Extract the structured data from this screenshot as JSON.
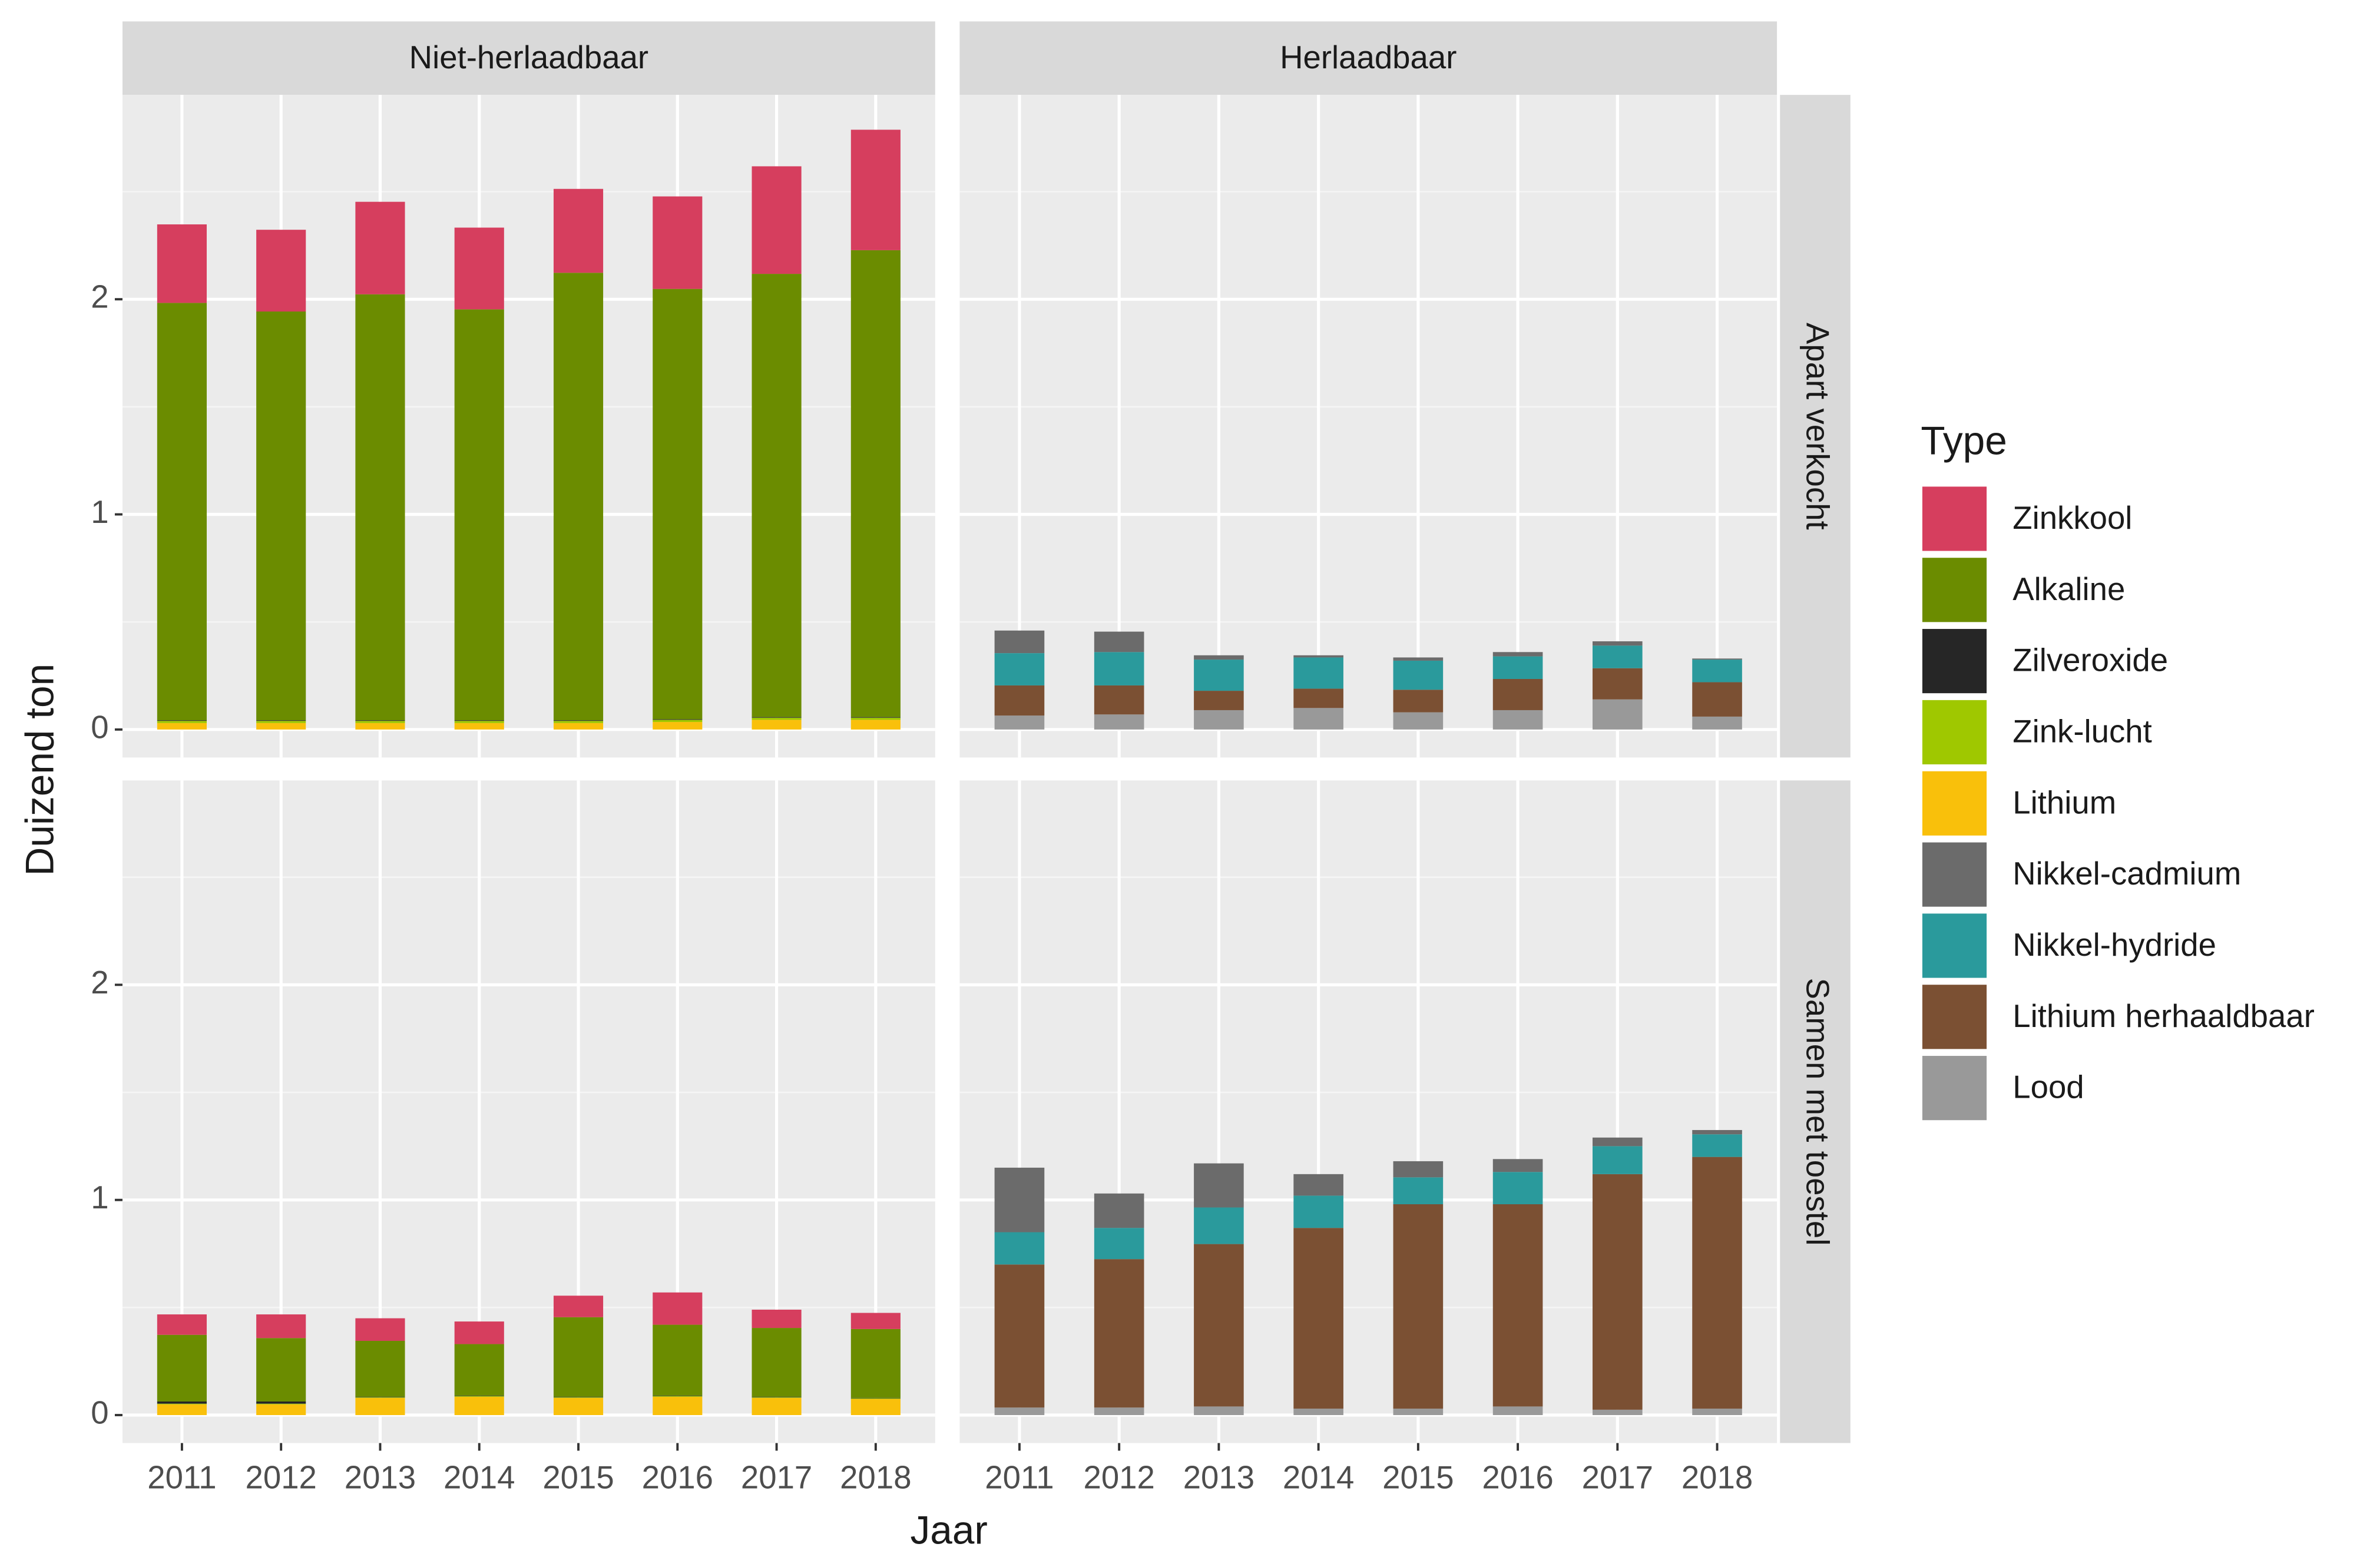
{
  "chart_data": {
    "type": "bar",
    "stacked": true,
    "xlabel": "Jaar",
    "ylabel": "Duizend ton",
    "legend": "right",
    "legend_title": "Type",
    "grid": true,
    "columns": [
      "Niet-herlaadbaar",
      "Herlaadbaar"
    ],
    "rows": [
      "Apart verkocht",
      "Samen met toestel"
    ],
    "categories": [
      "2011",
      "2012",
      "2013",
      "2014",
      "2015",
      "2016",
      "2017",
      "2018"
    ],
    "ylim": [
      -0.13,
      2.95
    ],
    "yticks": [
      0,
      1,
      2
    ],
    "series": [
      {
        "name": "Zinkkool",
        "color": "#d63e5e"
      },
      {
        "name": "Alkaline",
        "color": "#6b8c00"
      },
      {
        "name": "Zilveroxide",
        "color": "#262626"
      },
      {
        "name": "Zink-lucht",
        "color": "#9fc800"
      },
      {
        "name": "Lithium",
        "color": "#f9c00b"
      },
      {
        "name": "Nikkel-cadmium",
        "color": "#6b6b6b"
      },
      {
        "name": "Nikkel-hydride",
        "color": "#2a9a9c"
      },
      {
        "name": "Lithium herhaaldbaar",
        "color": "#7b5033"
      },
      {
        "name": "Lood",
        "color": "#999999"
      }
    ],
    "panels": [
      {
        "series": [
          {
            "values": [
              0.365,
              0.38,
              0.43,
              0.38,
              0.39,
              0.43,
              0.5,
              0.56
            ]
          },
          {
            "values": [
              1.94,
              1.9,
              1.98,
              1.91,
              2.08,
              2.0,
              2.06,
              2.17
            ]
          },
          {
            "values": [
              0.003,
              0.003,
              0.003,
              0.003,
              0.003,
              0.003,
              0.003,
              0.003
            ]
          },
          {
            "values": [
              0.01,
              0.01,
              0.01,
              0.01,
              0.01,
              0.01,
              0.01,
              0.01
            ]
          },
          {
            "values": [
              0.03,
              0.03,
              0.03,
              0.03,
              0.03,
              0.035,
              0.045,
              0.045
            ]
          },
          {
            "values": [
              0,
              0,
              0,
              0,
              0,
              0,
              0,
              0
            ]
          },
          {
            "values": [
              0,
              0,
              0,
              0,
              0,
              0,
              0,
              0
            ]
          },
          {
            "values": [
              0,
              0,
              0,
              0,
              0,
              0,
              0,
              0
            ]
          },
          {
            "values": [
              0,
              0,
              0,
              0,
              0,
              0,
              0,
              0
            ]
          }
        ]
      },
      {
        "series": [
          {
            "values": [
              0,
              0,
              0,
              0,
              0,
              0,
              0,
              0
            ]
          },
          {
            "values": [
              0,
              0,
              0,
              0,
              0,
              0,
              0,
              0
            ]
          },
          {
            "values": [
              0,
              0,
              0,
              0,
              0,
              0,
              0,
              0
            ]
          },
          {
            "values": [
              0,
              0,
              0,
              0,
              0,
              0,
              0,
              0
            ]
          },
          {
            "values": [
              0,
              0,
              0,
              0,
              0,
              0,
              0,
              0
            ]
          },
          {
            "values": [
              0.105,
              0.095,
              0.02,
              0.01,
              0.015,
              0.02,
              0.02,
              0.005
            ]
          },
          {
            "values": [
              0.15,
              0.155,
              0.145,
              0.145,
              0.135,
              0.105,
              0.105,
              0.105
            ]
          },
          {
            "values": [
              0.14,
              0.135,
              0.09,
              0.09,
              0.105,
              0.145,
              0.145,
              0.16
            ]
          },
          {
            "values": [
              0.065,
              0.07,
              0.09,
              0.1,
              0.08,
              0.09,
              0.14,
              0.06
            ]
          }
        ]
      },
      {
        "series": [
          {
            "values": [
              0.095,
              0.11,
              0.105,
              0.105,
              0.1,
              0.15,
              0.085,
              0.075
            ]
          },
          {
            "values": [
              0.31,
              0.295,
              0.26,
              0.24,
              0.37,
              0.33,
              0.32,
              0.32
            ]
          },
          {
            "values": [
              0.01,
              0.01,
              0.002,
              0.002,
              0.002,
              0.002,
              0.002,
              0.002
            ]
          },
          {
            "values": [
              0.003,
              0.003,
              0.003,
              0.003,
              0.003,
              0.003,
              0.003,
              0.003
            ]
          },
          {
            "values": [
              0.05,
              0.05,
              0.08,
              0.085,
              0.08,
              0.085,
              0.08,
              0.075
            ]
          },
          {
            "values": [
              0,
              0,
              0,
              0,
              0,
              0,
              0,
              0
            ]
          },
          {
            "values": [
              0,
              0,
              0,
              0,
              0,
              0,
              0,
              0
            ]
          },
          {
            "values": [
              0,
              0,
              0,
              0,
              0,
              0,
              0,
              0
            ]
          },
          {
            "values": [
              0,
              0,
              0,
              0,
              0,
              0,
              0,
              0
            ]
          }
        ]
      },
      {
        "series": [
          {
            "values": [
              0,
              0,
              0,
              0,
              0,
              0,
              0,
              0
            ]
          },
          {
            "values": [
              0,
              0,
              0,
              0,
              0,
              0,
              0,
              0
            ]
          },
          {
            "values": [
              0,
              0,
              0,
              0,
              0,
              0,
              0,
              0
            ]
          },
          {
            "values": [
              0,
              0,
              0,
              0,
              0,
              0,
              0,
              0
            ]
          },
          {
            "values": [
              0,
              0,
              0,
              0,
              0,
              0,
              0,
              0
            ]
          },
          {
            "values": [
              0.3,
              0.16,
              0.205,
              0.1,
              0.075,
              0.06,
              0.04,
              0.02
            ]
          },
          {
            "values": [
              0.15,
              0.145,
              0.17,
              0.15,
              0.125,
              0.15,
              0.13,
              0.105
            ]
          },
          {
            "values": [
              0.665,
              0.69,
              0.755,
              0.84,
              0.95,
              0.94,
              1.095,
              1.17
            ]
          },
          {
            "values": [
              0.035,
              0.035,
              0.04,
              0.03,
              0.03,
              0.04,
              0.025,
              0.03
            ]
          }
        ]
      }
    ]
  }
}
